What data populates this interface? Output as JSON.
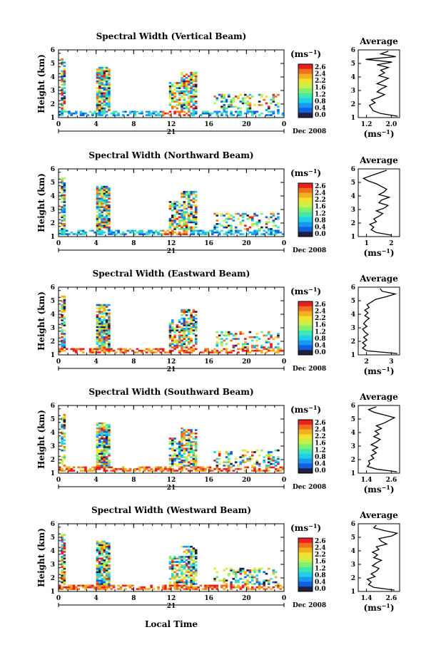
{
  "colors": {
    "scale": [
      "#202040",
      "#1060e0",
      "#1898f0",
      "#20d0e8",
      "#40e8b0",
      "#80f070",
      "#c8f048",
      "#f0e030",
      "#f0b020",
      "#f07020",
      "#e82020"
    ],
    "axis": "#000000"
  },
  "shared": {
    "ylabel": "Height (km)",
    "cbar_unit": "(ms",
    "cbar_exp": "−1",
    "cbar_ticks": [
      "2.6",
      "2.4",
      "2.2",
      "1.6",
      "1.2",
      "0.8",
      "0.4",
      "0.0"
    ],
    "x_ticks": [
      "0",
      "4",
      "8",
      "12",
      "16",
      "20",
      "0"
    ],
    "y_ticks": [
      "1",
      "2",
      "3",
      "4",
      "5",
      "6"
    ],
    "date_marker": "21",
    "date_label": "Dec 2008",
    "xlabel": "Local Time",
    "avg_title": "Average",
    "avg_unit": "(ms",
    "avg_exp": "−1"
  },
  "chart_data": [
    {
      "type": "heatmap",
      "title": "Spectral Width (Vertical Beam)",
      "beam": "vertical",
      "x_range": [
        0,
        24
      ],
      "ylim": [
        1,
        6
      ],
      "avg_profile": {
        "type": "line",
        "xticks": [
          "1.2",
          "2.0"
        ],
        "xlim": [
          1.0,
          2.1
        ],
        "height": [
          1.1,
          1.3,
          1.5,
          1.7,
          1.9,
          2.1,
          2.3,
          2.5,
          2.7,
          2.9,
          3.1,
          3.3,
          3.5,
          3.7,
          3.9,
          4.1,
          4.3,
          4.5,
          4.7,
          4.9,
          5.1,
          5.3,
          5.5,
          5.7,
          5.9
        ],
        "width": [
          2.05,
          1.6,
          1.4,
          1.35,
          1.3,
          1.45,
          1.35,
          1.55,
          1.7,
          1.5,
          1.6,
          1.75,
          1.5,
          1.65,
          1.8,
          1.55,
          1.7,
          1.6,
          1.8,
          1.5,
          1.9,
          1.2,
          2.0,
          1.6,
          1.8
        ]
      }
    },
    {
      "type": "heatmap",
      "title": "Spectral Width (Northward Beam)",
      "beam": "northward",
      "x_range": [
        0,
        24
      ],
      "ylim": [
        1,
        6
      ],
      "avg_profile": {
        "type": "line",
        "xticks": [
          "1",
          "2"
        ],
        "xlim": [
          0.8,
          2.4
        ],
        "height": [
          1.1,
          1.3,
          1.5,
          1.7,
          1.9,
          2.1,
          2.3,
          2.5,
          2.7,
          2.9,
          3.1,
          3.3,
          3.5,
          3.7,
          3.9,
          4.1,
          4.3,
          4.5,
          4.7,
          4.9,
          5.1,
          5.3,
          5.5,
          5.7,
          5.9
        ],
        "width": [
          2.1,
          1.5,
          1.3,
          1.4,
          1.25,
          1.5,
          1.4,
          1.6,
          1.75,
          1.5,
          1.8,
          1.95,
          1.6,
          1.7,
          2.0,
          1.6,
          1.8,
          1.9,
          1.7,
          1.5,
          1.2,
          1.0,
          1.3,
          1.6,
          1.9
        ]
      }
    },
    {
      "type": "heatmap",
      "title": "Spectral Width (Eastward Beam)",
      "beam": "eastward",
      "x_range": [
        0,
        24
      ],
      "ylim": [
        1,
        6
      ],
      "avg_profile": {
        "type": "line",
        "xticks": [
          "2",
          "3"
        ],
        "xlim": [
          1.4,
          3.3
        ],
        "height": [
          1.1,
          1.3,
          1.5,
          1.7,
          1.9,
          2.1,
          2.3,
          2.5,
          2.7,
          2.9,
          3.1,
          3.3,
          3.5,
          3.7,
          3.9,
          4.1,
          4.3,
          4.5,
          4.7,
          4.9,
          5.1,
          5.3,
          5.5,
          5.7,
          5.9
        ],
        "width": [
          3.2,
          1.8,
          1.6,
          1.75,
          1.6,
          1.8,
          1.65,
          1.85,
          1.7,
          1.6,
          1.8,
          1.65,
          1.75,
          1.9,
          1.7,
          1.85,
          1.7,
          1.9,
          1.8,
          2.0,
          2.2,
          2.7,
          3.1,
          2.5,
          2.4
        ]
      }
    },
    {
      "type": "heatmap",
      "title": "Spectral Width (Southward Beam)",
      "beam": "southward",
      "x_range": [
        0,
        24
      ],
      "ylim": [
        1,
        6
      ],
      "avg_profile": {
        "type": "line",
        "xticks": [
          "1.4",
          "2.6"
        ],
        "xlim": [
          1.2,
          2.8
        ],
        "height": [
          1.1,
          1.3,
          1.5,
          1.7,
          1.9,
          2.1,
          2.3,
          2.5,
          2.7,
          2.9,
          3.1,
          3.3,
          3.5,
          3.7,
          3.9,
          4.1,
          4.3,
          4.5,
          4.7,
          4.9,
          5.1,
          5.3,
          5.5,
          5.7,
          5.9
        ],
        "width": [
          2.7,
          1.9,
          1.55,
          1.65,
          1.6,
          1.8,
          1.7,
          1.9,
          1.75,
          1.95,
          1.7,
          1.9,
          2.05,
          1.8,
          2.0,
          1.85,
          2.1,
          1.9,
          2.2,
          2.4,
          2.6,
          2.2,
          1.8,
          1.6,
          1.9
        ]
      }
    },
    {
      "type": "heatmap",
      "title": "Spectral Width (Westward Beam)",
      "beam": "westward",
      "x_range": [
        0,
        24
      ],
      "ylim": [
        1,
        6
      ],
      "avg_profile": {
        "type": "line",
        "xticks": [
          "1.4",
          "2.6"
        ],
        "xlim": [
          1.2,
          2.8
        ],
        "height": [
          1.1,
          1.3,
          1.5,
          1.7,
          1.9,
          2.1,
          2.3,
          2.5,
          2.7,
          2.9,
          3.1,
          3.3,
          3.5,
          3.7,
          3.9,
          4.1,
          4.3,
          4.5,
          4.7,
          4.9,
          5.1,
          5.3,
          5.5,
          5.7,
          5.9
        ],
        "width": [
          2.6,
          1.8,
          1.6,
          1.7,
          1.55,
          1.85,
          1.7,
          1.9,
          2.0,
          1.75,
          1.9,
          2.1,
          1.8,
          1.95,
          1.75,
          2.0,
          1.9,
          2.3,
          2.1,
          2.0,
          2.5,
          2.7,
          2.2,
          1.8,
          1.9
        ]
      }
    }
  ]
}
